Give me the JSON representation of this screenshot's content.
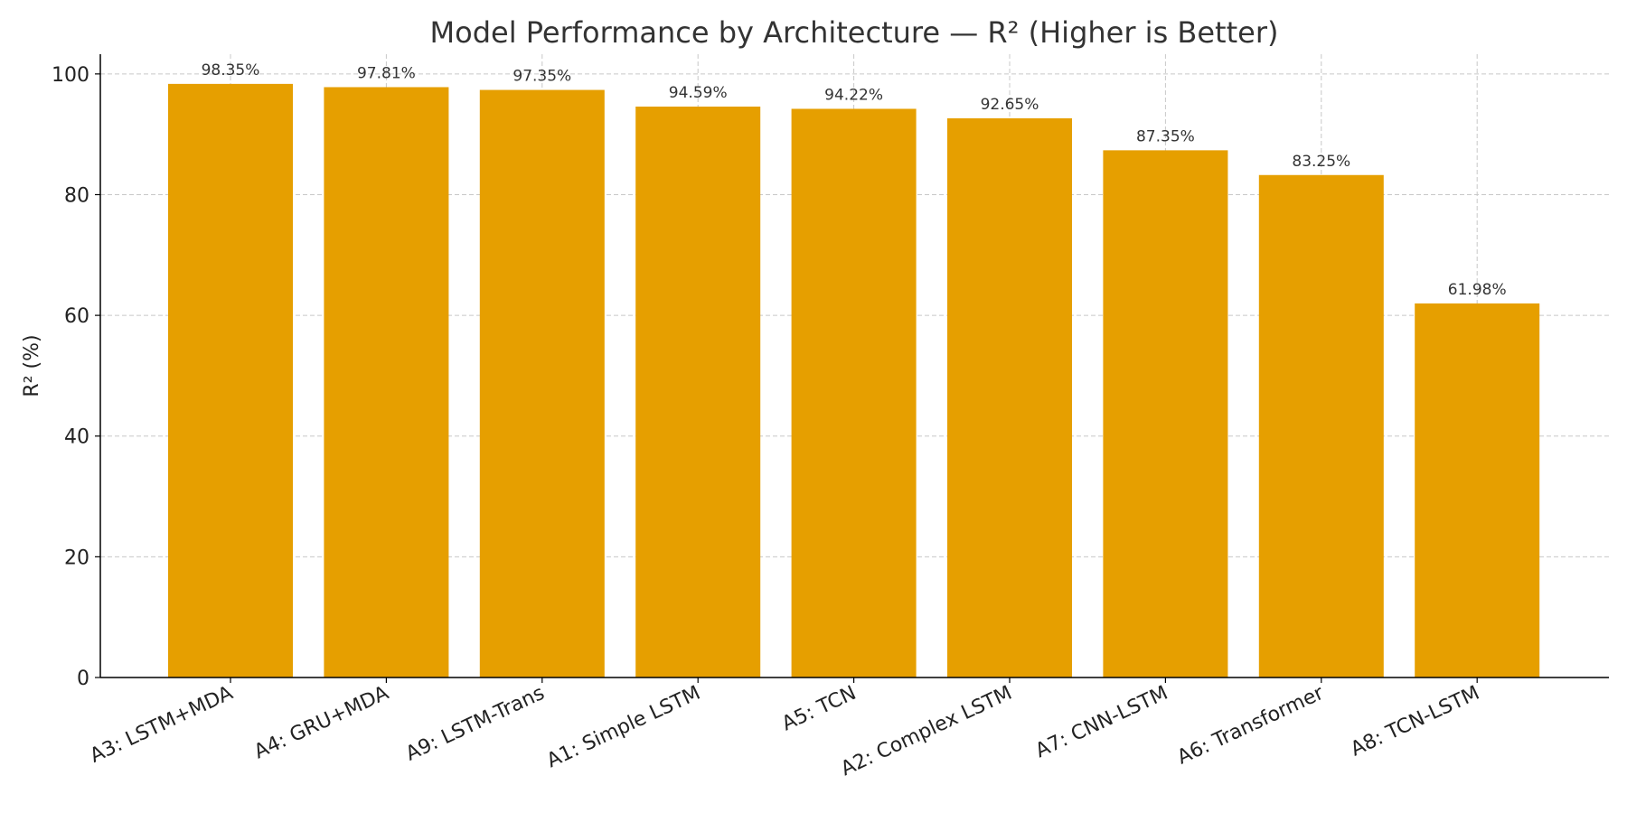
{
  "chart_data": {
    "type": "bar",
    "title": "Model Performance by Architecture — R² (Higher is Better)",
    "xlabel": "",
    "ylabel": "R² (%)",
    "categories": [
      "A3: LSTM+MDA",
      "A4: GRU+MDA",
      "A9: LSTM-Trans",
      "A1: Simple LSTM",
      "A5: TCN",
      "A2: Complex LSTM",
      "A7: CNN-LSTM",
      "A6: Transformer",
      "A8: TCN-LSTM"
    ],
    "values": [
      98.35,
      97.81,
      97.35,
      94.59,
      94.22,
      92.65,
      87.35,
      83.25,
      61.98
    ],
    "data_labels": [
      "98.35%",
      "97.81%",
      "97.35%",
      "94.59%",
      "94.22%",
      "92.65%",
      "87.35%",
      "83.25%",
      "61.98%"
    ],
    "ylim": [
      0,
      103.27
    ],
    "yticks": [
      0,
      20,
      40,
      60,
      80,
      100
    ],
    "grid": true,
    "bar_color": "#E69F00",
    "grid_color": "#c8c8c8"
  }
}
